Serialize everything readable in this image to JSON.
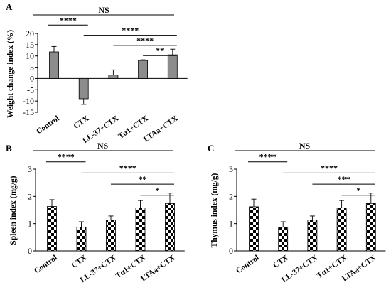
{
  "colors": {
    "bar_fill": "#8c8c8c",
    "axis": "#000000",
    "checker_dark": "#000000",
    "checker_light": "#ffffff"
  },
  "chart_data": [
    {
      "type": "bar",
      "panel_label": "A",
      "title": "",
      "xlabel": "",
      "ylabel": "Weight change index (%)",
      "ylim": [
        -15,
        20
      ],
      "yticks": [
        -15,
        -10,
        -5,
        0,
        5,
        10,
        15,
        20
      ],
      "ytick_labels": [
        "-15",
        "-10",
        "-5",
        "0",
        "5",
        "10",
        "15",
        "20"
      ],
      "categories": [
        "Control",
        "CTX",
        "LL-37+CTX",
        "Tα1+CTX",
        "LTAa+CTX"
      ],
      "values": [
        11.8,
        -9.0,
        1.5,
        8.0,
        10.5
      ],
      "errors": [
        2.4,
        2.5,
        2.3,
        0.3,
        2.5
      ],
      "fill": "solid gray",
      "grid": false,
      "legend": "none",
      "significance": [
        {
          "from": 0,
          "to": 4,
          "label": "NS"
        },
        {
          "from": 0,
          "to": 1,
          "label": "****"
        },
        {
          "from": 1,
          "to": 4,
          "label": "****"
        },
        {
          "from": 2,
          "to": 4,
          "label": "****"
        },
        {
          "from": 3,
          "to": 4,
          "label": "**"
        }
      ]
    },
    {
      "type": "bar",
      "panel_label": "B",
      "title": "",
      "xlabel": "",
      "ylabel": "Spleen index (mg/g)",
      "ylim": [
        0,
        3
      ],
      "yticks": [
        0,
        1,
        2,
        3
      ],
      "ytick_labels": [
        "0",
        "1",
        "2",
        "3"
      ],
      "categories": [
        "Control",
        "CTX",
        "LL-37+CTX",
        "Tα1+CTX",
        "LTAa+CTX"
      ],
      "values": [
        1.63,
        0.87,
        1.13,
        1.58,
        1.74
      ],
      "errors": [
        0.25,
        0.2,
        0.15,
        0.27,
        0.38
      ],
      "fill": "checkerboard",
      "grid": false,
      "legend": "none",
      "significance": [
        {
          "from": 0,
          "to": 4,
          "label": "NS"
        },
        {
          "from": 0,
          "to": 1,
          "label": "****"
        },
        {
          "from": 1,
          "to": 4,
          "label": "****"
        },
        {
          "from": 2,
          "to": 4,
          "label": "**"
        },
        {
          "from": 3,
          "to": 4,
          "label": "*"
        }
      ]
    },
    {
      "type": "bar",
      "panel_label": "C",
      "title": "",
      "xlabel": "",
      "ylabel": "Thymus index (mg/g)",
      "ylim": [
        0,
        3
      ],
      "yticks": [
        0,
        1,
        2,
        3
      ],
      "ytick_labels": [
        "0",
        "1",
        "2",
        "3"
      ],
      "categories": [
        "Control",
        "CTX",
        "LL-37+CTX",
        "Tα1+CTX",
        "LTAa+CTX"
      ],
      "values": [
        1.62,
        0.87,
        1.13,
        1.58,
        1.74
      ],
      "errors": [
        0.28,
        0.2,
        0.15,
        0.27,
        0.38
      ],
      "fill": "checkerboard",
      "grid": false,
      "legend": "none",
      "significance": [
        {
          "from": 0,
          "to": 4,
          "label": "NS"
        },
        {
          "from": 0,
          "to": 1,
          "label": "****"
        },
        {
          "from": 1,
          "to": 4,
          "label": "****"
        },
        {
          "from": 2,
          "to": 4,
          "label": "***"
        },
        {
          "from": 3,
          "to": 4,
          "label": "*"
        }
      ]
    }
  ]
}
